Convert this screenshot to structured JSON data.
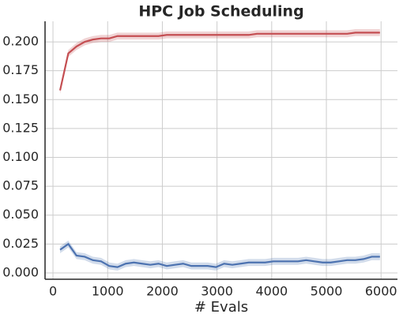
{
  "chart_data": {
    "type": "line",
    "title": "HPC Job Scheduling",
    "x_label": "# Evals",
    "x": [
      130,
      280,
      430,
      580,
      730,
      880,
      1030,
      1180,
      1330,
      1480,
      1630,
      1780,
      1930,
      2080,
      2230,
      2380,
      2530,
      2680,
      2830,
      2980,
      3130,
      3280,
      3430,
      3580,
      3730,
      3880,
      4030,
      4180,
      4330,
      4480,
      4630,
      4780,
      4930,
      5080,
      5230,
      5380,
      5530,
      5680,
      5830,
      5980
    ],
    "series": [
      {
        "color": "#c44e52",
        "error": 0.003,
        "values": [
          0.158,
          0.19,
          0.196,
          0.2,
          0.202,
          0.203,
          0.203,
          0.205,
          0.205,
          0.205,
          0.205,
          0.205,
          0.205,
          0.206,
          0.206,
          0.206,
          0.206,
          0.206,
          0.206,
          0.206,
          0.206,
          0.206,
          0.206,
          0.206,
          0.207,
          0.207,
          0.207,
          0.207,
          0.207,
          0.207,
          0.207,
          0.207,
          0.207,
          0.207,
          0.207,
          0.207,
          0.208,
          0.208,
          0.208,
          0.208
        ]
      },
      {
        "color": "#4c72b0",
        "error": 0.003,
        "values": [
          0.02,
          0.025,
          0.015,
          0.014,
          0.011,
          0.01,
          0.006,
          0.005,
          0.008,
          0.009,
          0.008,
          0.007,
          0.008,
          0.006,
          0.007,
          0.008,
          0.006,
          0.006,
          0.006,
          0.005,
          0.008,
          0.007,
          0.008,
          0.009,
          0.009,
          0.009,
          0.01,
          0.01,
          0.01,
          0.01,
          0.011,
          0.01,
          0.009,
          0.009,
          0.01,
          0.011,
          0.011,
          0.012,
          0.014,
          0.014
        ]
      }
    ],
    "xlim": [
      -145,
      6300
    ],
    "ylim": [
      -0.0055,
      0.2178
    ],
    "xticks": [
      0,
      1000,
      2000,
      3000,
      4000,
      5000,
      6000
    ],
    "yticks": [
      {
        "value": 0,
        "label": "0.000"
      },
      {
        "value": 0.025,
        "label": "0.025"
      },
      {
        "value": 0.05,
        "label": "0.050"
      },
      {
        "value": 0.075,
        "label": "0.075"
      },
      {
        "value": 0.1,
        "label": "0.100"
      },
      {
        "value": 0.125,
        "label": "0.125"
      },
      {
        "value": 0.15,
        "label": "0.150"
      },
      {
        "value": 0.175,
        "label": "0.175"
      },
      {
        "value": 0.2,
        "label": "0.200"
      }
    ],
    "grid": true
  }
}
